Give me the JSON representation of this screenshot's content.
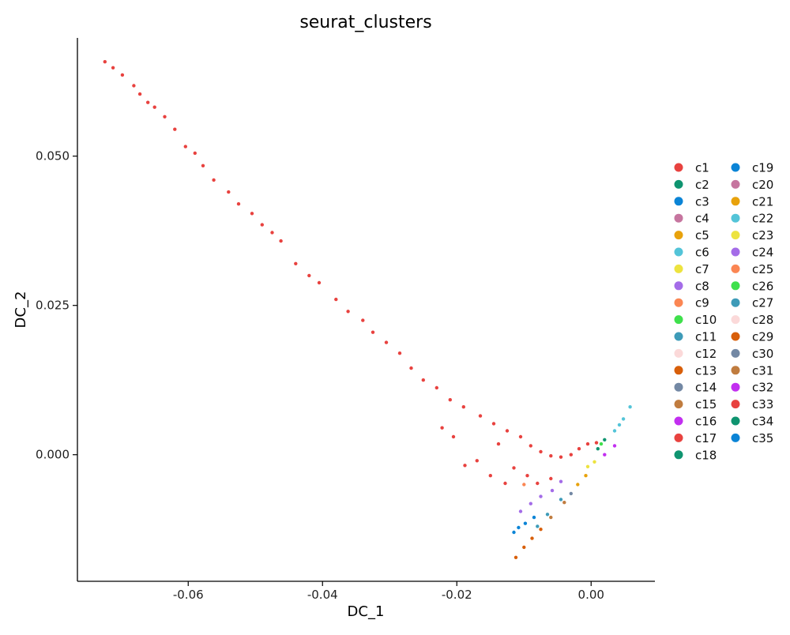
{
  "chart_data": {
    "type": "scatter",
    "title": "seurat_clusters",
    "xlabel": "DC_1",
    "ylabel": "DC_2",
    "xlim": [
      -0.0765,
      0.0095
    ],
    "ylim": [
      -0.0212,
      0.0698
    ],
    "x_ticks": [
      {
        "value": -0.06,
        "label": "-0.06"
      },
      {
        "value": -0.04,
        "label": "-0.04"
      },
      {
        "value": -0.02,
        "label": "-0.02"
      },
      {
        "value": 0.0,
        "label": "0.00"
      }
    ],
    "y_ticks": [
      {
        "value": 0.0,
        "label": "0.000"
      },
      {
        "value": 0.025,
        "label": "0.025"
      },
      {
        "value": 0.05,
        "label": "0.050"
      }
    ],
    "grid": false,
    "legend_position": "right",
    "series": [
      {
        "name": "c1",
        "color": "#E8423F"
      },
      {
        "name": "c2",
        "color": "#0F9470"
      },
      {
        "name": "c3",
        "color": "#0B84D6"
      },
      {
        "name": "c4",
        "color": "#C6759F"
      },
      {
        "name": "c5",
        "color": "#E8A20C"
      },
      {
        "name": "c6",
        "color": "#53C4D8"
      },
      {
        "name": "c7",
        "color": "#EDE33F"
      },
      {
        "name": "c8",
        "color": "#A46CE8"
      },
      {
        "name": "c9",
        "color": "#FB8653"
      },
      {
        "name": "c10",
        "color": "#3FE04C"
      },
      {
        "name": "c11",
        "color": "#3E9BB8"
      },
      {
        "name": "c12",
        "color": "#FBD9D9"
      },
      {
        "name": "c13",
        "color": "#D85F0A"
      },
      {
        "name": "c14",
        "color": "#7388A4"
      },
      {
        "name": "c15",
        "color": "#C07C3F"
      },
      {
        "name": "c16",
        "color": "#C22FF0"
      },
      {
        "name": "c17",
        "color": "#E8423F"
      },
      {
        "name": "c18",
        "color": "#0F9470"
      },
      {
        "name": "c19",
        "color": "#0B84D6"
      },
      {
        "name": "c20",
        "color": "#C6759F"
      },
      {
        "name": "c21",
        "color": "#E8A20C"
      },
      {
        "name": "c22",
        "color": "#53C4D8"
      },
      {
        "name": "c23",
        "color": "#EDE33F"
      },
      {
        "name": "c24",
        "color": "#A46CE8"
      },
      {
        "name": "c25",
        "color": "#FB8653"
      },
      {
        "name": "c26",
        "color": "#3FE04C"
      },
      {
        "name": "c27",
        "color": "#3E9BB8"
      },
      {
        "name": "c28",
        "color": "#FBD9D9"
      },
      {
        "name": "c29",
        "color": "#D85F0A"
      },
      {
        "name": "c30",
        "color": "#7388A4"
      },
      {
        "name": "c31",
        "color": "#C07C3F"
      },
      {
        "name": "c32",
        "color": "#C22FF0"
      },
      {
        "name": "c33",
        "color": "#E8423F"
      },
      {
        "name": "c34",
        "color": "#0F9470"
      },
      {
        "name": "c35",
        "color": "#0B84D6"
      }
    ],
    "points": [
      {
        "cluster": "c1",
        "x": -0.0724,
        "y": 0.0658
      },
      {
        "cluster": "c1",
        "x": -0.0712,
        "y": 0.0648
      },
      {
        "cluster": "c1",
        "x": -0.0698,
        "y": 0.0636
      },
      {
        "cluster": "c1",
        "x": -0.0681,
        "y": 0.0618
      },
      {
        "cluster": "c1",
        "x": -0.0672,
        "y": 0.0604
      },
      {
        "cluster": "c1",
        "x": -0.066,
        "y": 0.059
      },
      {
        "cluster": "c1",
        "x": -0.065,
        "y": 0.0582
      },
      {
        "cluster": "c1",
        "x": -0.0635,
        "y": 0.0566
      },
      {
        "cluster": "c1",
        "x": -0.062,
        "y": 0.0545
      },
      {
        "cluster": "c1",
        "x": -0.0604,
        "y": 0.0516
      },
      {
        "cluster": "c1",
        "x": -0.059,
        "y": 0.0505
      },
      {
        "cluster": "c1",
        "x": -0.0578,
        "y": 0.0484
      },
      {
        "cluster": "c1",
        "x": -0.0562,
        "y": 0.046
      },
      {
        "cluster": "c1",
        "x": -0.054,
        "y": 0.044
      },
      {
        "cluster": "c1",
        "x": -0.0525,
        "y": 0.042
      },
      {
        "cluster": "c1",
        "x": -0.0505,
        "y": 0.0404
      },
      {
        "cluster": "c1",
        "x": -0.049,
        "y": 0.0385
      },
      {
        "cluster": "c1",
        "x": -0.0475,
        "y": 0.0372
      },
      {
        "cluster": "c1",
        "x": -0.0462,
        "y": 0.0358
      },
      {
        "cluster": "c1",
        "x": -0.044,
        "y": 0.032
      },
      {
        "cluster": "c1",
        "x": -0.042,
        "y": 0.03
      },
      {
        "cluster": "c1",
        "x": -0.0405,
        "y": 0.0288
      },
      {
        "cluster": "c1",
        "x": -0.038,
        "y": 0.026
      },
      {
        "cluster": "c1",
        "x": -0.0362,
        "y": 0.024
      },
      {
        "cluster": "c1",
        "x": -0.034,
        "y": 0.0225
      },
      {
        "cluster": "c1",
        "x": -0.0325,
        "y": 0.0205
      },
      {
        "cluster": "c1",
        "x": -0.0305,
        "y": 0.0188
      },
      {
        "cluster": "c1",
        "x": -0.0285,
        "y": 0.017
      },
      {
        "cluster": "c1",
        "x": -0.0268,
        "y": 0.0145
      },
      {
        "cluster": "c1",
        "x": -0.025,
        "y": 0.0125
      },
      {
        "cluster": "c1",
        "x": -0.023,
        "y": 0.0112
      },
      {
        "cluster": "c1",
        "x": -0.021,
        "y": 0.0092
      },
      {
        "cluster": "c1",
        "x": -0.019,
        "y": 0.008
      },
      {
        "cluster": "c1",
        "x": -0.0165,
        "y": 0.0065
      },
      {
        "cluster": "c1",
        "x": -0.0145,
        "y": 0.0052
      },
      {
        "cluster": "c1",
        "x": -0.0125,
        "y": 0.004
      },
      {
        "cluster": "c1",
        "x": -0.0105,
        "y": 0.003
      },
      {
        "cluster": "c1",
        "x": -0.009,
        "y": 0.0015
      },
      {
        "cluster": "c1",
        "x": -0.0075,
        "y": 0.0005
      },
      {
        "cluster": "c1",
        "x": -0.006,
        "y": -0.0002
      },
      {
        "cluster": "c1",
        "x": -0.0045,
        "y": -0.0004
      },
      {
        "cluster": "c1",
        "x": -0.003,
        "y": 0.0
      },
      {
        "cluster": "c1",
        "x": -0.0018,
        "y": 0.001
      },
      {
        "cluster": "c1",
        "x": -0.0005,
        "y": 0.0018
      },
      {
        "cluster": "c1",
        "x": 0.0008,
        "y": 0.002
      },
      {
        "cluster": "c1",
        "x": -0.017,
        "y": -0.001
      },
      {
        "cluster": "c1",
        "x": -0.015,
        "y": -0.0035
      },
      {
        "cluster": "c1",
        "x": -0.0128,
        "y": -0.0048
      },
      {
        "cluster": "c1",
        "x": -0.0115,
        "y": -0.0022
      },
      {
        "cluster": "c1",
        "x": -0.0095,
        "y": -0.0035
      },
      {
        "cluster": "c1",
        "x": -0.0205,
        "y": 0.003
      },
      {
        "cluster": "c1",
        "x": -0.0222,
        "y": 0.0045
      },
      {
        "cluster": "c1",
        "x": -0.0188,
        "y": -0.0018
      },
      {
        "cluster": "c1",
        "x": -0.0138,
        "y": 0.0018
      },
      {
        "cluster": "c1",
        "x": -0.008,
        "y": -0.0048
      },
      {
        "cluster": "c1",
        "x": -0.006,
        "y": -0.004
      },
      {
        "cluster": "c9",
        "x": -0.01,
        "y": -0.005
      },
      {
        "cluster": "c8",
        "x": -0.0105,
        "y": -0.0095
      },
      {
        "cluster": "c8",
        "x": -0.009,
        "y": -0.0082
      },
      {
        "cluster": "c8",
        "x": -0.0075,
        "y": -0.007
      },
      {
        "cluster": "c8",
        "x": -0.0058,
        "y": -0.006
      },
      {
        "cluster": "c8",
        "x": -0.0045,
        "y": -0.0045
      },
      {
        "cluster": "c3",
        "x": -0.0115,
        "y": -0.013
      },
      {
        "cluster": "c3",
        "x": -0.0108,
        "y": -0.0122
      },
      {
        "cluster": "c3",
        "x": -0.0098,
        "y": -0.0115
      },
      {
        "cluster": "c3",
        "x": -0.0085,
        "y": -0.0105
      },
      {
        "cluster": "c11",
        "x": -0.008,
        "y": -0.012
      },
      {
        "cluster": "c11",
        "x": -0.0065,
        "y": -0.01
      },
      {
        "cluster": "c11",
        "x": -0.0045,
        "y": -0.0075
      },
      {
        "cluster": "c13",
        "x": -0.0112,
        "y": -0.0172
      },
      {
        "cluster": "c13",
        "x": -0.01,
        "y": -0.0155
      },
      {
        "cluster": "c13",
        "x": -0.0088,
        "y": -0.014
      },
      {
        "cluster": "c13",
        "x": -0.0075,
        "y": -0.0125
      },
      {
        "cluster": "c15",
        "x": -0.006,
        "y": -0.0105
      },
      {
        "cluster": "c15",
        "x": -0.004,
        "y": -0.008
      },
      {
        "cluster": "c14",
        "x": -0.003,
        "y": -0.0065
      },
      {
        "cluster": "c5",
        "x": -0.002,
        "y": -0.005
      },
      {
        "cluster": "c5",
        "x": -0.0008,
        "y": -0.0035
      },
      {
        "cluster": "c7",
        "x": -0.0005,
        "y": -0.002
      },
      {
        "cluster": "c7",
        "x": 0.0005,
        "y": -0.0012
      },
      {
        "cluster": "c2",
        "x": 0.001,
        "y": 0.001
      },
      {
        "cluster": "c2",
        "x": 0.002,
        "y": 0.0025
      },
      {
        "cluster": "c10",
        "x": 0.0015,
        "y": 0.0018
      },
      {
        "cluster": "c16",
        "x": 0.002,
        "y": 0.0
      },
      {
        "cluster": "c16",
        "x": 0.0035,
        "y": 0.0015
      },
      {
        "cluster": "c6",
        "x": 0.0035,
        "y": 0.004
      },
      {
        "cluster": "c6",
        "x": 0.0048,
        "y": 0.006
      },
      {
        "cluster": "c6",
        "x": 0.0058,
        "y": 0.008
      },
      {
        "cluster": "c22",
        "x": 0.0042,
        "y": 0.005
      }
    ]
  }
}
